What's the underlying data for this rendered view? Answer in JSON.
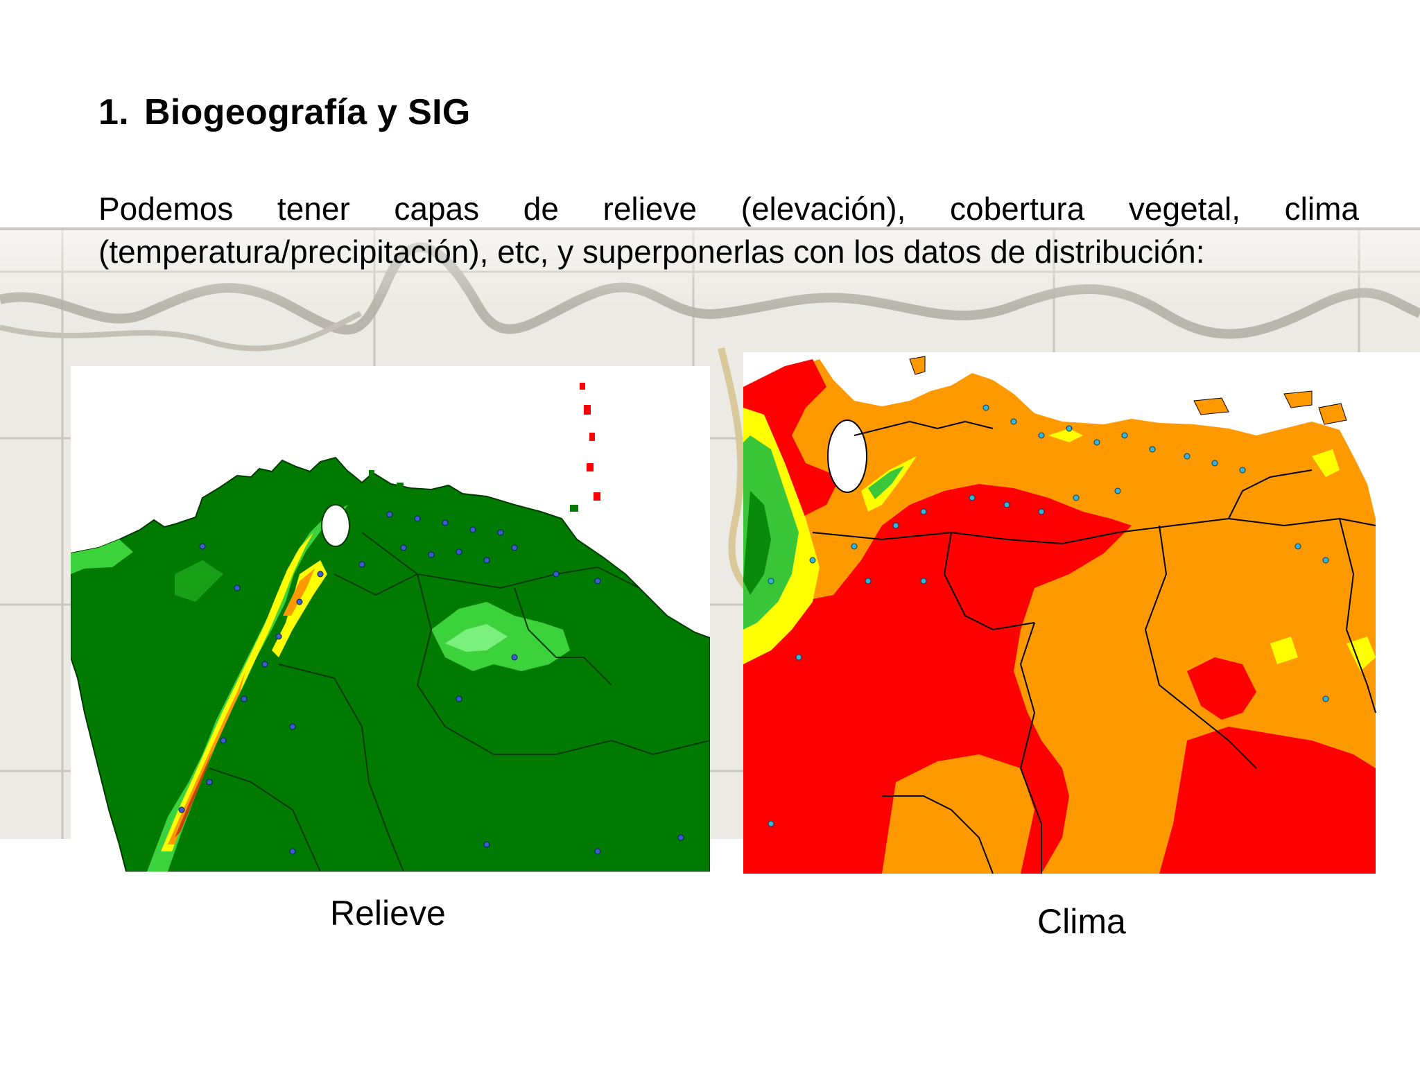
{
  "slide": {
    "title_number": "1.",
    "title_text": "Biogeografía y SIG",
    "body": "Podemos tener capas de relieve (elevación), cobertura vegetal, clima (temperatura/precipitación), etc, y superponerlas con los datos de distribución:"
  },
  "maps": [
    {
      "caption": "Relieve",
      "layer": "elevation",
      "palette": [
        "#007a00",
        "#18a018",
        "#3cd23c",
        "#7cf07c",
        "#ffff00",
        "#ff9900",
        "#c84100"
      ]
    },
    {
      "caption": "Clima",
      "layer": "temperature/precipitation",
      "palette": [
        "#ff0000",
        "#ff9900",
        "#ffff00",
        "#39c639",
        "#0a8a0a"
      ]
    }
  ],
  "colors": {
    "background_map": "#eceae4",
    "relief_base_green": "#007a00",
    "climate_red": "#ff0000",
    "climate_orange": "#ff9900"
  }
}
